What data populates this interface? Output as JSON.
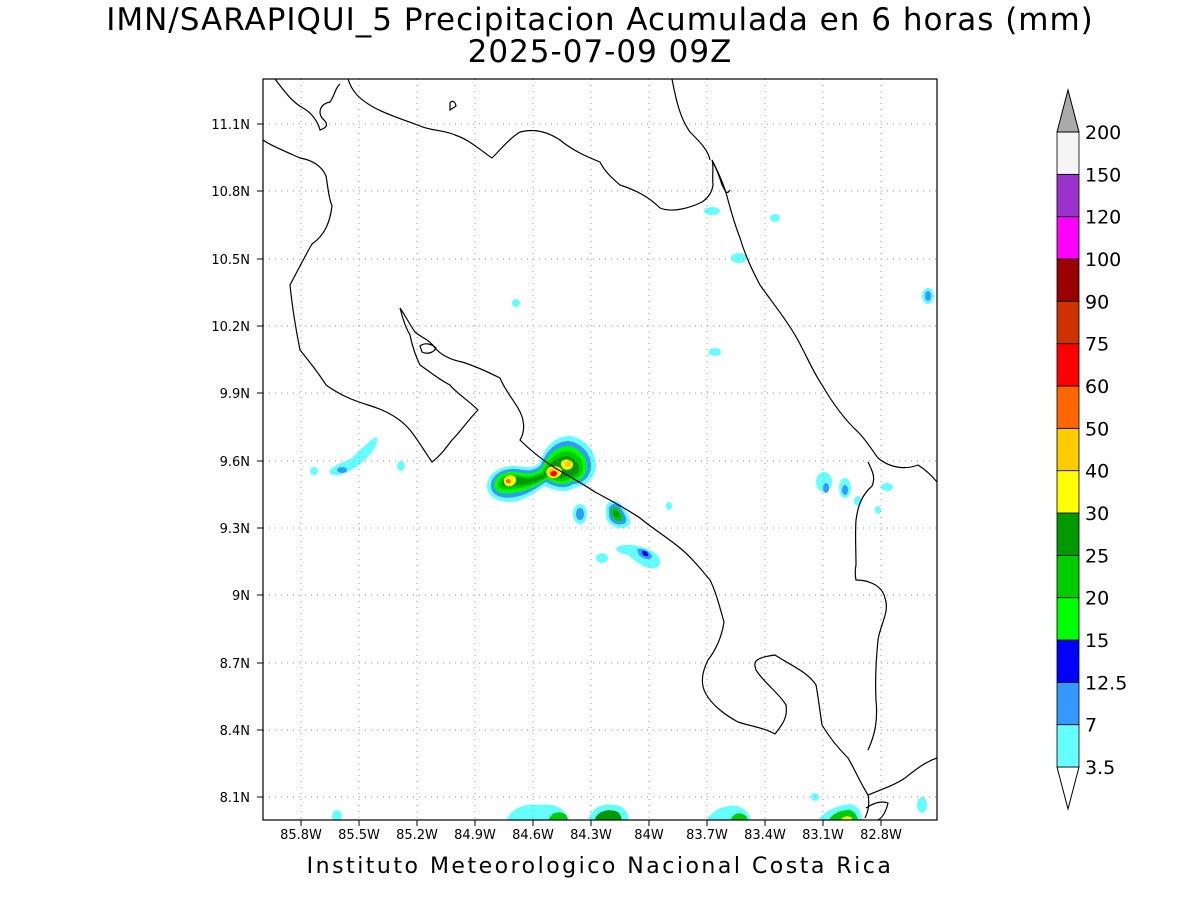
{
  "title": {
    "line1": "IMN/SARAPIQUI_5 Precipitacion Acumulada en 6 horas (mm)",
    "line2": "2025-07-09 09Z"
  },
  "footer": "Instituto Meteorologico Nacional Costa Rica",
  "map": {
    "lon_range": [
      -86.0,
      -82.5
    ],
    "lat_range": [
      8.0,
      11.3
    ],
    "lon_ticks": [
      {
        "value": -85.8,
        "label": "85.8W"
      },
      {
        "value": -85.5,
        "label": "85.5W"
      },
      {
        "value": -85.2,
        "label": "85.2W"
      },
      {
        "value": -84.9,
        "label": "84.9W"
      },
      {
        "value": -84.6,
        "label": "84.6W"
      },
      {
        "value": -84.3,
        "label": "84.3W"
      },
      {
        "value": -84.0,
        "label": "84W"
      },
      {
        "value": -83.7,
        "label": "83.7W"
      },
      {
        "value": -83.4,
        "label": "83.4W"
      },
      {
        "value": -83.1,
        "label": "83.1W"
      },
      {
        "value": -82.8,
        "label": "82.8W"
      }
    ],
    "lat_ticks": [
      {
        "value": 11.1,
        "label": "11.1N"
      },
      {
        "value": 10.8,
        "label": "10.8N"
      },
      {
        "value": 10.5,
        "label": "10.5N"
      },
      {
        "value": 10.2,
        "label": "10.2N"
      },
      {
        "value": 9.9,
        "label": "9.9N"
      },
      {
        "value": 9.6,
        "label": "9.6N"
      },
      {
        "value": 9.3,
        "label": "9.3N"
      },
      {
        "value": 9.0,
        "label": "9N"
      },
      {
        "value": 8.7,
        "label": "8.7N"
      },
      {
        "value": 8.4,
        "label": "8.4N"
      },
      {
        "value": 8.1,
        "label": "8.1N"
      }
    ],
    "grid": "dotted"
  },
  "colorbar": {
    "levels": [
      "3.5",
      "7",
      "12.5",
      "15",
      "20",
      "25",
      "30",
      "40",
      "50",
      "60",
      "75",
      "90",
      "100",
      "120",
      "150",
      "200"
    ],
    "colors": [
      "#66ffff",
      "#3399ff",
      "#0000ff",
      "#00ff00",
      "#00cc00",
      "#009900",
      "#ffff00",
      "#ffcc00",
      "#ff6600",
      "#ff0000",
      "#cc3300",
      "#990000",
      "#ff00ff",
      "#9933cc",
      "#f5f5f5",
      "#aaaaaa"
    ]
  }
}
